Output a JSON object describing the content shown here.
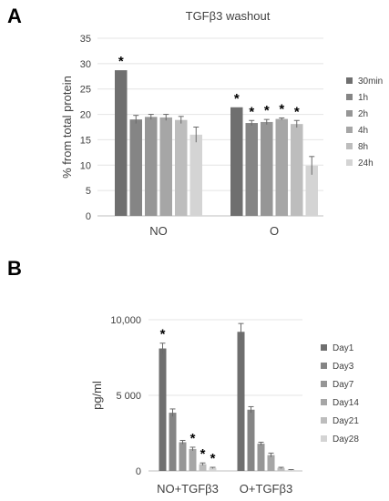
{
  "chart_data": [
    {
      "panel": "A",
      "type": "bar",
      "title": "TGFβ3 washout",
      "xlabel": "",
      "ylabel": "% from total protein",
      "ylim": [
        0,
        35
      ],
      "yticks": [
        "0",
        "5",
        "10",
        "15",
        "20",
        "25",
        "30",
        "35"
      ],
      "grid": true,
      "legend_position": "right",
      "categories": [
        "NO",
        "O"
      ],
      "series": [
        {
          "name": "30min",
          "color": "#6f6f6f",
          "values": [
            28.7,
            21.4
          ],
          "errors": [
            0,
            0
          ],
          "significant": [
            true,
            true
          ]
        },
        {
          "name": "1h",
          "color": "#858585",
          "values": [
            19.0,
            18.3
          ],
          "errors": [
            0.8,
            0.5
          ],
          "significant": [
            false,
            true
          ]
        },
        {
          "name": "2h",
          "color": "#969696",
          "values": [
            19.5,
            18.5
          ],
          "errors": [
            0.5,
            0.5
          ],
          "significant": [
            false,
            true
          ]
        },
        {
          "name": "4h",
          "color": "#a6a6a6",
          "values": [
            19.4,
            19.1
          ],
          "errors": [
            0.6,
            0.2
          ],
          "significant": [
            false,
            true
          ]
        },
        {
          "name": "8h",
          "color": "#bdbdbd",
          "values": [
            18.9,
            18.1
          ],
          "errors": [
            0.7,
            0.7
          ],
          "significant": [
            false,
            true
          ]
        },
        {
          "name": "24h",
          "color": "#d4d4d4",
          "values": [
            16.0,
            9.9
          ],
          "errors": [
            1.5,
            1.8
          ],
          "significant": [
            false,
            false
          ]
        }
      ]
    },
    {
      "panel": "B",
      "type": "bar",
      "title": "",
      "xlabel": "",
      "ylabel": "pg/ml",
      "ylim": [
        0,
        10000
      ],
      "yticks": [
        "0",
        "5 000",
        "10,000"
      ],
      "grid": true,
      "legend_position": "right",
      "categories": [
        "NO+TGFβ3",
        "O+TGFβ3"
      ],
      "series": [
        {
          "name": "Day1",
          "color": "#6f6f6f",
          "values": [
            8100,
            9200
          ],
          "errors": [
            350,
            550
          ],
          "significant": [
            true,
            false
          ]
        },
        {
          "name": "Day3",
          "color": "#858585",
          "values": [
            3850,
            4050
          ],
          "errors": [
            250,
            200
          ],
          "significant": [
            false,
            false
          ]
        },
        {
          "name": "Day7",
          "color": "#969696",
          "values": [
            1900,
            1800
          ],
          "errors": [
            120,
            100
          ],
          "significant": [
            false,
            false
          ]
        },
        {
          "name": "Day14",
          "color": "#a6a6a6",
          "values": [
            1450,
            1050
          ],
          "errors": [
            120,
            130
          ],
          "significant": [
            true,
            false
          ]
        },
        {
          "name": "Day21",
          "color": "#bdbdbd",
          "values": [
            450,
            200
          ],
          "errors": [
            80,
            40
          ],
          "significant": [
            true,
            false
          ]
        },
        {
          "name": "Day28",
          "color": "#d4d4d4",
          "values": [
            200,
            70
          ],
          "errors": [
            40,
            20
          ],
          "significant": [
            true,
            false
          ]
        }
      ]
    }
  ],
  "panels": {
    "a_letter": "A",
    "b_letter": "B"
  },
  "significance_marker": "*"
}
